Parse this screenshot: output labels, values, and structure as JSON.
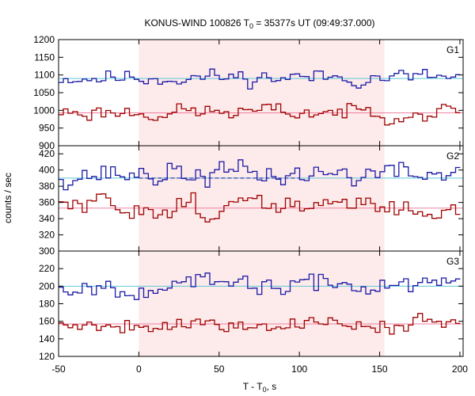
{
  "chart_data": {
    "type": "line",
    "title": {
      "prefix": "KONUS-WIND 100826 T",
      "sub": "0",
      "suffix": " = 35377s UT (09:49:37.000)"
    },
    "xlabel": {
      "prefix": "T - T",
      "sub": "0",
      "suffix": ", s"
    },
    "ylabel": "counts / sec",
    "xlim": [
      -50,
      202
    ],
    "xticks": [
      -50,
      0,
      50,
      100,
      150,
      200
    ],
    "xtick_labels": [
      "-50",
      "0",
      "50",
      "100",
      "150",
      "200"
    ],
    "shaded_interval": [
      0,
      153
    ],
    "colors": {
      "high_series": "#1a1aa6",
      "low_series": "#a00000",
      "high_background": "#5fc8d8",
      "low_background": "#f080a0",
      "shading": "#fdeaea"
    },
    "bin_width": 2.944,
    "panels": [
      {
        "name": "G1",
        "ylim": [
          900,
          1200
        ],
        "yticks": [
          900,
          950,
          1000,
          1050,
          1100,
          1150,
          1200
        ],
        "ytick_labels": [
          "900",
          "950",
          "1000",
          "1050",
          "1100",
          "1150",
          "1200"
        ],
        "series": [
          {
            "name": "G1 high",
            "start": 1093,
            "amp": 14,
            "seed": 11,
            "background": 1090,
            "bg_dashed": false
          },
          {
            "name": "G1 low",
            "start": 995,
            "amp": 14,
            "seed": 23,
            "background": 993,
            "bg_dashed": false
          }
        ]
      },
      {
        "name": "G2",
        "ylim": [
          300,
          430
        ],
        "yticks": [
          300,
          320,
          340,
          360,
          380,
          400,
          420
        ],
        "ytick_labels": [
          "300",
          "320",
          "340",
          "360",
          "380",
          "400",
          "420"
        ],
        "series": [
          {
            "name": "G2 high",
            "start": 395,
            "amp": 9,
            "seed": 37,
            "background": 390,
            "bg_dashed": true
          },
          {
            "name": "G2 low",
            "start": 355,
            "amp": 9,
            "seed": 51,
            "background": 353,
            "bg_dashed": false
          }
        ]
      },
      {
        "name": "G3",
        "ylim": [
          120,
          240
        ],
        "yticks": [
          120,
          140,
          160,
          180,
          200,
          220
        ],
        "ytick_labels": [
          "120",
          "140",
          "160",
          "180",
          "200",
          "220"
        ],
        "series": [
          {
            "name": "G3 high",
            "start": 201,
            "amp": 7,
            "seed": 67,
            "background": 200,
            "bg_dashed": false
          },
          {
            "name": "G3 low",
            "start": 157,
            "amp": 6,
            "seed": 79,
            "background": 157,
            "bg_dashed": false
          }
        ]
      }
    ]
  }
}
